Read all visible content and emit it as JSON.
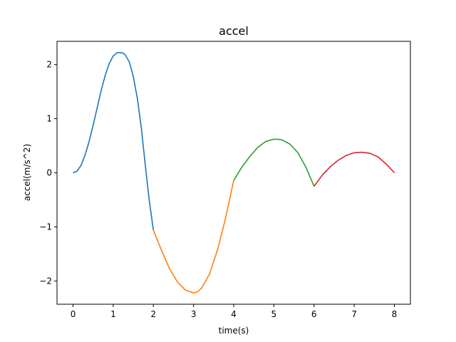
{
  "chart_data": {
    "type": "line",
    "title": "accel",
    "xlabel": "time(s)",
    "ylabel": "accel(m/s^2)",
    "xlim": [
      -0.4,
      8.4
    ],
    "ylim": [
      -2.43,
      2.43
    ],
    "xticks": [
      0,
      1,
      2,
      3,
      4,
      5,
      6,
      7,
      8
    ],
    "xtick_labels": [
      "0",
      "1",
      "2",
      "3",
      "4",
      "5",
      "6",
      "7",
      "8"
    ],
    "yticks": [
      -2,
      -1,
      0,
      1,
      2
    ],
    "ytick_labels": [
      "−2",
      "−1",
      "0",
      "1",
      "2"
    ],
    "grid": false,
    "series": [
      {
        "color": "#1f77b4",
        "x": [
          0,
          0.1,
          0.2,
          0.3,
          0.4,
          0.5,
          0.6,
          0.7,
          0.8,
          0.9,
          1.0,
          1.1,
          1.2,
          1.25,
          1.3,
          1.4,
          1.5,
          1.6,
          1.7,
          1.8,
          1.9,
          2.0
        ],
        "y": [
          0.0,
          0.03,
          0.14,
          0.33,
          0.58,
          0.88,
          1.2,
          1.52,
          1.8,
          2.02,
          2.16,
          2.22,
          2.22,
          2.21,
          2.18,
          2.05,
          1.78,
          1.38,
          0.83,
          0.13,
          -0.53,
          -1.06
        ]
      },
      {
        "color": "#ff7f0e",
        "x": [
          2.0,
          2.2,
          2.4,
          2.6,
          2.8,
          3.0,
          3.1,
          3.2,
          3.4,
          3.6,
          3.8,
          4.0
        ],
        "y": [
          -1.06,
          -1.43,
          -1.77,
          -2.02,
          -2.17,
          -2.22,
          -2.2,
          -2.13,
          -1.87,
          -1.42,
          -0.83,
          -0.14
        ]
      },
      {
        "color": "#2ca02c",
        "x": [
          4.0,
          4.2,
          4.4,
          4.6,
          4.8,
          5.0,
          5.1,
          5.2,
          5.4,
          5.6,
          5.8,
          6.0
        ],
        "y": [
          -0.14,
          0.1,
          0.3,
          0.47,
          0.58,
          0.62,
          0.62,
          0.61,
          0.53,
          0.37,
          0.1,
          -0.25
        ]
      },
      {
        "color": "#d62728",
        "x": [
          6.0,
          6.2,
          6.4,
          6.6,
          6.8,
          7.0,
          7.2,
          7.4,
          7.6,
          7.8,
          8.0
        ],
        "y": [
          -0.25,
          -0.05,
          0.11,
          0.23,
          0.32,
          0.37,
          0.38,
          0.36,
          0.29,
          0.16,
          0.0
        ]
      }
    ]
  }
}
